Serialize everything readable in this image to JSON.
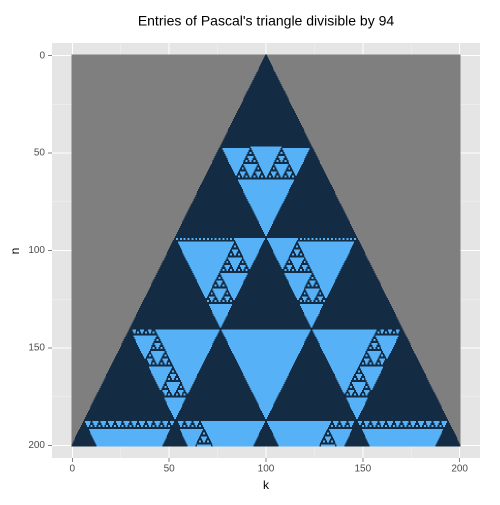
{
  "chart_data": {
    "type": "pascal-raster",
    "title": "Entries of Pascal's triangle divisible by 94",
    "x_label": "k",
    "y_label": "n",
    "divisor": 94,
    "n_range": [
      0,
      200
    ],
    "xlim": [
      -10.5,
      210.5
    ],
    "xticks": [
      0,
      50,
      100,
      150,
      200
    ],
    "ylim": [
      -6.5,
      206.5
    ],
    "yticks": [
      0,
      50,
      100,
      150,
      200
    ],
    "y_reversed": true,
    "grid": true,
    "colors": {
      "divisible": "#56B1F7",
      "not_divisible": "#132B43",
      "missing": "#7F7F7F"
    }
  }
}
